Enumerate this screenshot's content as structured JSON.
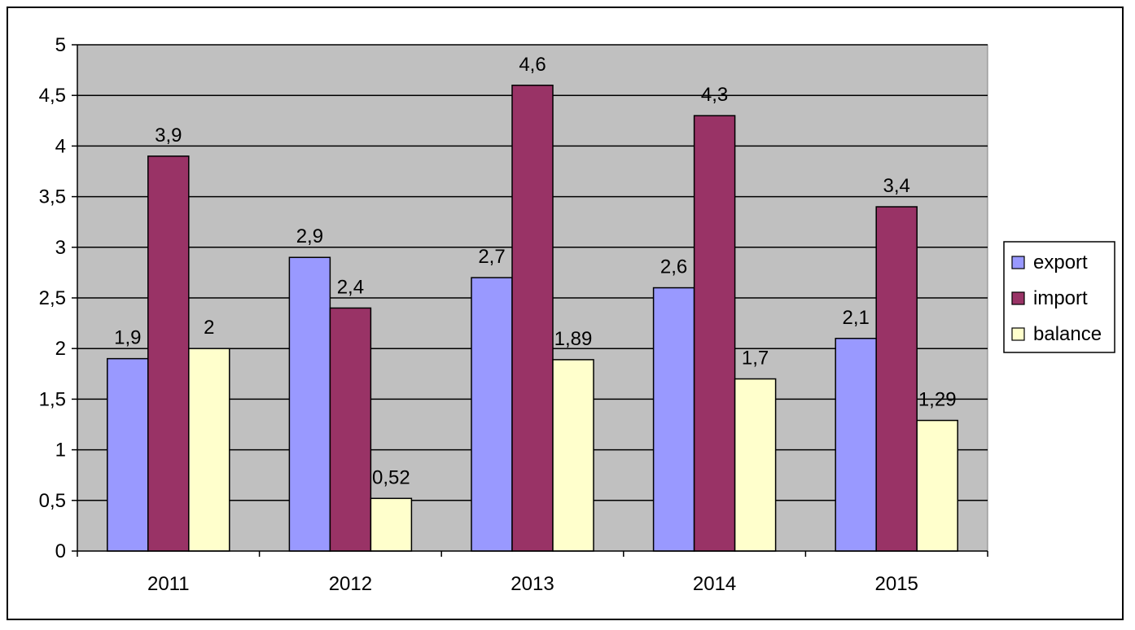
{
  "chart_data": {
    "type": "bar",
    "categories": [
      "2011",
      "2012",
      "2013",
      "2014",
      "2015"
    ],
    "series": [
      {
        "name": "export",
        "values": [
          1.9,
          2.9,
          2.7,
          2.6,
          2.1
        ],
        "labels": [
          "1,9",
          "2,9",
          "2,7",
          "2,6",
          "2,1"
        ],
        "color": "#9999ff"
      },
      {
        "name": "import",
        "values": [
          3.9,
          2.4,
          4.6,
          4.3,
          3.4
        ],
        "labels": [
          "3,9",
          "2,4",
          "4,6",
          "4,3",
          "3,4"
        ],
        "color": "#993366"
      },
      {
        "name": "balance",
        "values": [
          2,
          0.52,
          1.89,
          1.7,
          1.29
        ],
        "labels": [
          "2",
          "0,52",
          "1,89",
          "1,7",
          "1,29"
        ],
        "color": "#ffffcc"
      }
    ],
    "y_ticks": [
      0,
      0.5,
      1,
      1.5,
      2,
      2.5,
      3,
      3.5,
      4,
      4.5,
      5
    ],
    "y_tick_labels": [
      "0",
      "0,5",
      "1",
      "1,5",
      "2",
      "2,5",
      "3",
      "3,5",
      "4",
      "4,5",
      "5"
    ],
    "ylim": [
      0,
      5
    ],
    "title": "",
    "xlabel": "",
    "ylabel": "",
    "grid": true,
    "legend_position": "right",
    "plot_background": "#c0c0c0"
  }
}
